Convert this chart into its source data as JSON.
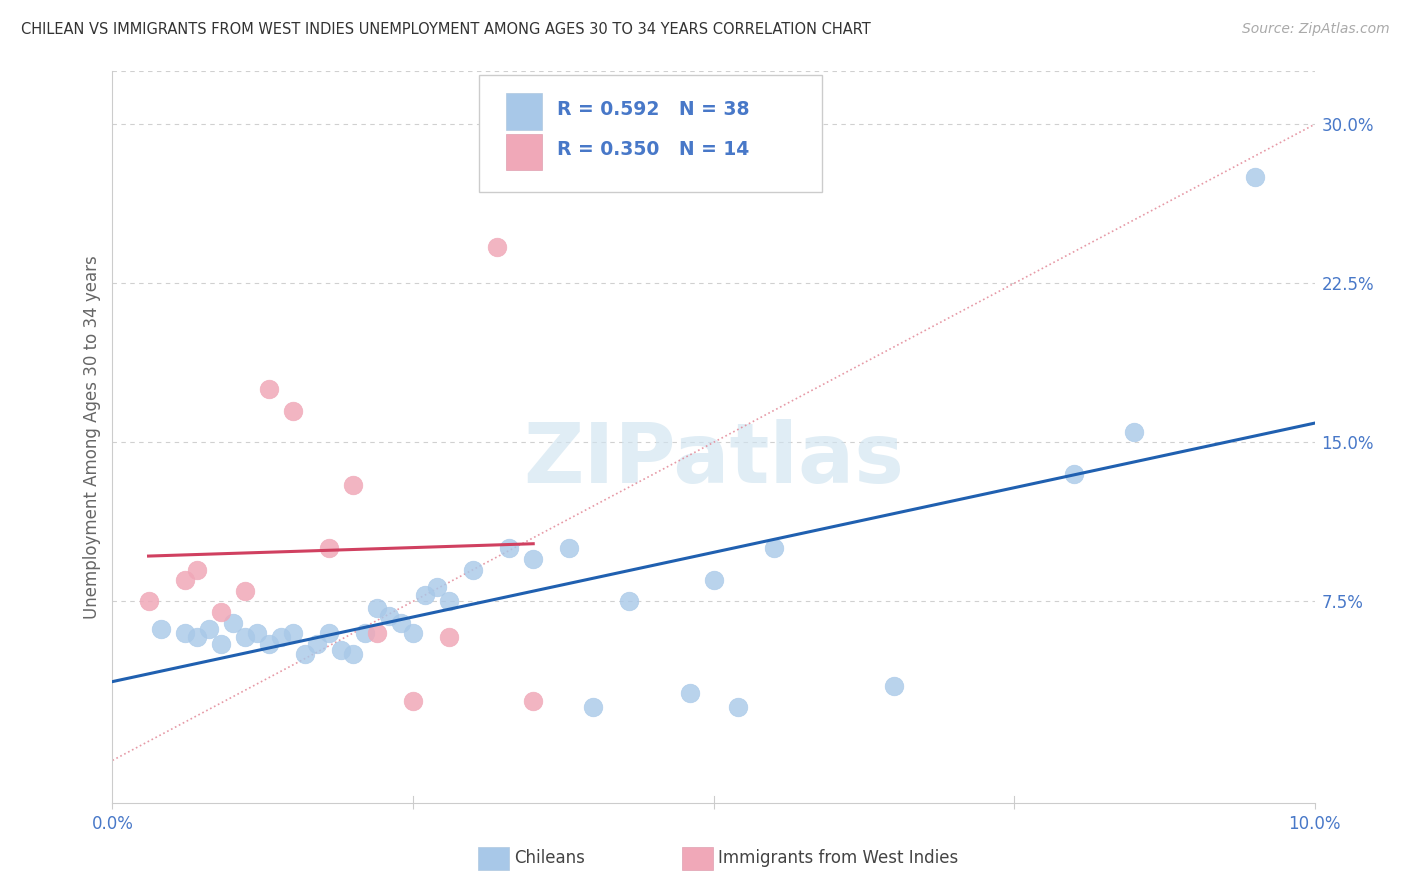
{
  "title": "CHILEAN VS IMMIGRANTS FROM WEST INDIES UNEMPLOYMENT AMONG AGES 30 TO 34 YEARS CORRELATION CHART",
  "source": "Source: ZipAtlas.com",
  "ylabel": "Unemployment Among Ages 30 to 34 years",
  "xlim": [
    0.0,
    0.1
  ],
  "ylim": [
    -0.02,
    0.325
  ],
  "yticks": [
    0.075,
    0.15,
    0.225,
    0.3
  ],
  "ytick_labels": [
    "7.5%",
    "15.0%",
    "22.5%",
    "30.0%"
  ],
  "xticks": [
    0.0,
    0.025,
    0.05,
    0.075,
    0.1
  ],
  "xtick_labels": [
    "0.0%",
    "",
    "",
    "",
    "10.0%"
  ],
  "r1": "0.592",
  "n1": "38",
  "r2": "0.350",
  "n2": "14",
  "blue_scatter": "#a8c8e8",
  "pink_scatter": "#f0a8b8",
  "line_blue": "#2060b0",
  "line_pink": "#d04060",
  "line_diag_color": "#e08090",
  "text_color": "#4878c8",
  "watermark_color": "#d0e4f0",
  "chileans_x": [
    0.004,
    0.006,
    0.007,
    0.008,
    0.009,
    0.01,
    0.011,
    0.012,
    0.013,
    0.014,
    0.015,
    0.016,
    0.017,
    0.018,
    0.019,
    0.02,
    0.021,
    0.022,
    0.023,
    0.024,
    0.025,
    0.026,
    0.027,
    0.028,
    0.03,
    0.033,
    0.035,
    0.038,
    0.04,
    0.043,
    0.048,
    0.05,
    0.052,
    0.055,
    0.065,
    0.08,
    0.085,
    0.095
  ],
  "chileans_y": [
    0.062,
    0.06,
    0.058,
    0.062,
    0.055,
    0.065,
    0.058,
    0.06,
    0.055,
    0.058,
    0.06,
    0.05,
    0.055,
    0.06,
    0.052,
    0.05,
    0.06,
    0.072,
    0.068,
    0.065,
    0.06,
    0.078,
    0.082,
    0.075,
    0.09,
    0.1,
    0.095,
    0.1,
    0.025,
    0.075,
    0.032,
    0.085,
    0.025,
    0.1,
    0.035,
    0.135,
    0.155,
    0.275
  ],
  "westindies_x": [
    0.003,
    0.006,
    0.007,
    0.009,
    0.011,
    0.013,
    0.015,
    0.018,
    0.02,
    0.022,
    0.025,
    0.028,
    0.032,
    0.035
  ],
  "westindies_y": [
    0.075,
    0.085,
    0.09,
    0.07,
    0.08,
    0.175,
    0.165,
    0.1,
    0.13,
    0.06,
    0.028,
    0.058,
    0.242,
    0.028
  ]
}
